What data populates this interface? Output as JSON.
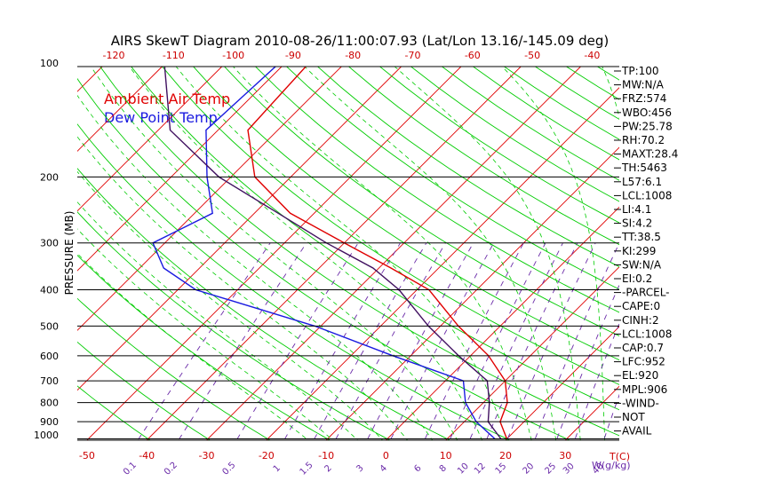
{
  "chart_data": {
    "type": "line",
    "title": "AIRS SkewT Diagram 2010-08-26/11:00:07.93 (Lat/Lon 13.16/-145.09 deg)",
    "ylabel": "PRESSURE (MB)",
    "xlabel": "T(C)",
    "mixing_ratio_unit": "W(g/kg)",
    "y_scale": "log",
    "ylim": [
      1050,
      100
    ],
    "xlim_bottom": [
      -55,
      45
    ],
    "pressure_ticks": [
      100,
      200,
      300,
      400,
      500,
      600,
      700,
      800,
      900,
      1000
    ],
    "top_temp_ticks": [
      -120,
      -110,
      -100,
      -90,
      -80,
      -70,
      -60,
      -50,
      -40
    ],
    "bottom_temp_ticks": [
      -50,
      -40,
      -30,
      -20,
      -10,
      0,
      10,
      20,
      30
    ],
    "mixing_ratio_ticks": [
      "0.1",
      "0.2",
      "0.5",
      "1",
      "1.5",
      "2",
      "3",
      "4",
      "6",
      "8",
      "10",
      "12",
      "15",
      "20",
      "25",
      "30",
      "40"
    ],
    "legend": [
      "Ambient Air Temp",
      "Dew Point Temp"
    ],
    "legend_position": "top-left",
    "series": [
      {
        "name": "Ambient Air Temp",
        "color": "#e00000",
        "points": [
          [
            100,
            -76
          ],
          [
            150,
            -75
          ],
          [
            200,
            -66
          ],
          [
            250,
            -54
          ],
          [
            300,
            -40
          ],
          [
            350,
            -28
          ],
          [
            400,
            -18
          ],
          [
            500,
            -7
          ],
          [
            600,
            3
          ],
          [
            700,
            10
          ],
          [
            800,
            14
          ],
          [
            900,
            16
          ],
          [
            1000,
            20
          ]
        ]
      },
      {
        "name": "Dew Point Temp",
        "color": "#1a1ae0",
        "points": [
          [
            100,
            -81
          ],
          [
            150,
            -82
          ],
          [
            200,
            -74
          ],
          [
            250,
            -67
          ],
          [
            300,
            -72
          ],
          [
            350,
            -66
          ],
          [
            400,
            -57
          ],
          [
            500,
            -31
          ],
          [
            600,
            -13
          ],
          [
            700,
            3
          ],
          [
            800,
            7
          ],
          [
            900,
            12
          ],
          [
            1000,
            18
          ]
        ]
      },
      {
        "name": "Parcel",
        "color": "#401060",
        "points": [
          [
            100,
            -100
          ],
          [
            150,
            -88
          ],
          [
            200,
            -72
          ],
          [
            250,
            -56
          ],
          [
            300,
            -43
          ],
          [
            350,
            -31
          ],
          [
            400,
            -23
          ],
          [
            500,
            -12
          ],
          [
            600,
            -2
          ],
          [
            700,
            7
          ],
          [
            800,
            11
          ],
          [
            900,
            14
          ],
          [
            1000,
            19
          ]
        ]
      }
    ],
    "grid": true
  },
  "indices": [
    "TP:100",
    "MW:N/A",
    "FRZ:574",
    "WBO:456",
    "PW:25.78",
    "RH:70.2",
    "MAXT:28.4",
    "TH:5463",
    "L57:6.1",
    "LCL:1008",
    "LI:4.1",
    "SI:4.2",
    "TT:38.5",
    "KI:299",
    "SW:N/A",
    "EI:0.2",
    "-PARCEL-",
    "CAPE:0",
    "CINH:2",
    "LCL:1008",
    "CAP:0.7",
    "LFC:952",
    "EL:920",
    "MPL:906",
    "-WIND-",
    "NOT",
    "AVAIL"
  ],
  "colors": {
    "isotherm": "#e00000",
    "dry_adiabat": "#00cc00",
    "moist_adiabat": "#00cc00",
    "mixing_ratio": "#6a2aa8",
    "isobar": "#000000",
    "axis_text": "#cc0000",
    "mixing_text": "#6a2aa8"
  }
}
